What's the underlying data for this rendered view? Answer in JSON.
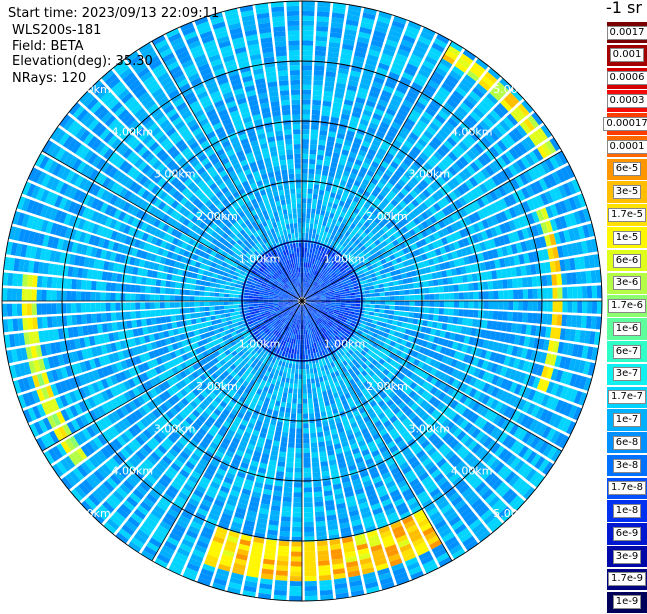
{
  "header": {
    "start_time": "Start time: 2023/09/13 22:09:11",
    "device": "WLS200s-181",
    "field": "Field: BETA",
    "elevation": "Elevation(deg): 35.30",
    "nrays": "NRays: 120"
  },
  "colorbar": {
    "unit": "-1 sr",
    "levels": [
      {
        "label": "0.0017",
        "color": "#7a0000"
      },
      {
        "label": "0.001",
        "color": "#a30000"
      },
      {
        "label": "0.0006",
        "color": "#d40000"
      },
      {
        "label": "0.0003",
        "color": "#f50a0a"
      },
      {
        "label": "0.00017",
        "color": "#ff3c00"
      },
      {
        "label": "0.0001",
        "color": "#ff6a00"
      },
      {
        "label": "6e-5",
        "color": "#ff9600"
      },
      {
        "label": "3e-5",
        "color": "#ffbe00"
      },
      {
        "label": "1.7e-5",
        "color": "#ffe000"
      },
      {
        "label": "1e-5",
        "color": "#fff700"
      },
      {
        "label": "6e-6",
        "color": "#e0ff1c"
      },
      {
        "label": "3e-6",
        "color": "#b4ff46"
      },
      {
        "label": "1.7e-6",
        "color": "#8cff6e"
      },
      {
        "label": "1e-6",
        "color": "#5cff9c"
      },
      {
        "label": "6e-7",
        "color": "#2effc8"
      },
      {
        "label": "3e-7",
        "color": "#10f0ee"
      },
      {
        "label": "1.7e-7",
        "color": "#00d4ff"
      },
      {
        "label": "1e-7",
        "color": "#00b0ff"
      },
      {
        "label": "6e-8",
        "color": "#0090ff"
      },
      {
        "label": "3e-8",
        "color": "#0070ff"
      },
      {
        "label": "1.7e-8",
        "color": "#0050ff"
      },
      {
        "label": "1e-8",
        "color": "#0030f0"
      },
      {
        "label": "6e-9",
        "color": "#0018d0"
      },
      {
        "label": "3e-9",
        "color": "#0008a8"
      },
      {
        "label": "1.7e-9",
        "color": "#000480"
      },
      {
        "label": "1e-9",
        "color": "#00005a"
      }
    ]
  },
  "chart_data": {
    "type": "heatmap",
    "projection": "polar",
    "field": "BETA",
    "elevation_deg": 35.3,
    "n_rays": 120,
    "max_range_km": 5.0,
    "range_rings_km": [
      1.0,
      2.0,
      3.0,
      4.0,
      5.0
    ],
    "ring_labels": [
      "1.00km",
      "2.00km",
      "3.00km",
      "4.00km",
      "5.00km"
    ],
    "spokes_deg": [
      0,
      30,
      60,
      90,
      120,
      150,
      180,
      210,
      240,
      270,
      300,
      330
    ],
    "background_level": "1e-7",
    "features": [
      {
        "label": "high backscatter arc south",
        "azimuth_deg": [
          150,
          200
        ],
        "range_km": [
          4.0,
          4.6
        ],
        "peak": "6e-5"
      },
      {
        "label": "high backscatter arc east",
        "azimuth_deg": [
          70,
          110
        ],
        "range_km": [
          4.1,
          4.3
        ],
        "peak": "3e-5"
      },
      {
        "label": "high backscatter arc southwest",
        "azimuth_deg": [
          235,
          275
        ],
        "range_km": [
          4.4,
          4.6
        ],
        "peak": "1.7e-5"
      },
      {
        "label": "high backscatter arc northeast",
        "azimuth_deg": [
          30,
          60
        ],
        "range_km": [
          4.6,
          4.9
        ],
        "peak": "3e-5"
      }
    ]
  }
}
